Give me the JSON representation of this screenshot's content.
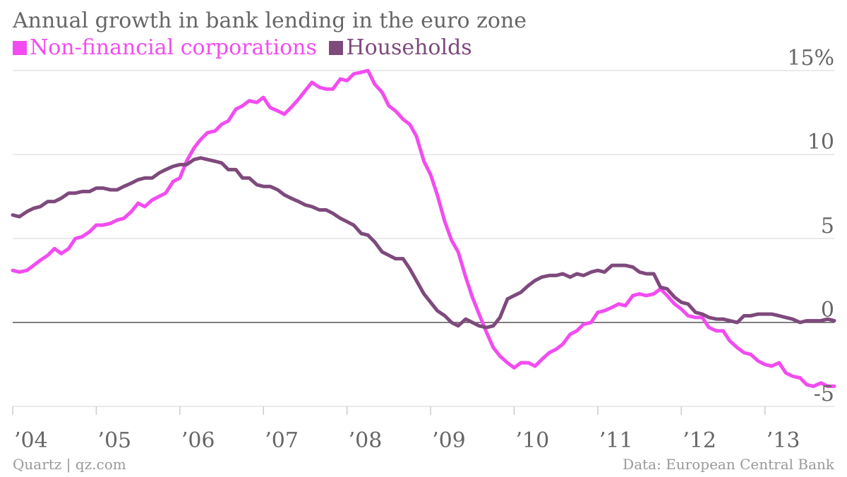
{
  "chart_data": {
    "type": "line",
    "title": "Annual growth in bank lending in the euro zone",
    "y_unit_label": "15%",
    "ylim": [
      -5,
      15
    ],
    "y_ticks": [
      {
        "value": 15,
        "label": "15%"
      },
      {
        "value": 10,
        "label": "10"
      },
      {
        "value": 5,
        "label": "5"
      },
      {
        "value": 0,
        "label": "0"
      },
      {
        "value": -5,
        "label": "-5"
      }
    ],
    "x_ticks": [
      {
        "value": 2004,
        "label": "’04"
      },
      {
        "value": 2005,
        "label": "’05"
      },
      {
        "value": 2006,
        "label": "’06"
      },
      {
        "value": 2007,
        "label": "’07"
      },
      {
        "value": 2008,
        "label": "’08"
      },
      {
        "value": 2009,
        "label": "’09"
      },
      {
        "value": 2010,
        "label": "’10"
      },
      {
        "value": 2011,
        "label": "’11"
      },
      {
        "value": 2012,
        "label": "’12"
      },
      {
        "value": 2013,
        "label": "’13"
      }
    ],
    "xlim": [
      2004.0,
      2013.83
    ],
    "legend_position": "top-left",
    "grid": true,
    "series": [
      {
        "name": "Non-financial corporations",
        "color": "#f24cf0",
        "x": [
          2004.0,
          2004.08,
          2004.17,
          2004.25,
          2004.33,
          2004.42,
          2004.5,
          2004.58,
          2004.67,
          2004.75,
          2004.83,
          2004.92,
          2005.0,
          2005.08,
          2005.17,
          2005.25,
          2005.33,
          2005.42,
          2005.5,
          2005.58,
          2005.67,
          2005.75,
          2005.83,
          2005.92,
          2006.0,
          2006.08,
          2006.17,
          2006.25,
          2006.33,
          2006.42,
          2006.5,
          2006.58,
          2006.67,
          2006.75,
          2006.83,
          2006.92,
          2007.0,
          2007.08,
          2007.17,
          2007.25,
          2007.33,
          2007.42,
          2007.5,
          2007.58,
          2007.67,
          2007.75,
          2007.83,
          2007.92,
          2008.0,
          2008.08,
          2008.17,
          2008.25,
          2008.33,
          2008.42,
          2008.5,
          2008.58,
          2008.67,
          2008.75,
          2008.83,
          2008.92,
          2009.0,
          2009.08,
          2009.17,
          2009.25,
          2009.33,
          2009.42,
          2009.5,
          2009.58,
          2009.67,
          2009.75,
          2009.83,
          2009.92,
          2010.0,
          2010.08,
          2010.17,
          2010.25,
          2010.33,
          2010.42,
          2010.5,
          2010.58,
          2010.67,
          2010.75,
          2010.83,
          2010.92,
          2011.0,
          2011.08,
          2011.17,
          2011.25,
          2011.33,
          2011.42,
          2011.5,
          2011.58,
          2011.67,
          2011.75,
          2011.83,
          2011.92,
          2012.0,
          2012.08,
          2012.17,
          2012.25,
          2012.33,
          2012.42,
          2012.5,
          2012.58,
          2012.67,
          2012.75,
          2012.83,
          2012.92,
          2013.0,
          2013.08,
          2013.17,
          2013.25,
          2013.33,
          2013.42,
          2013.5,
          2013.58,
          2013.67,
          2013.75,
          2013.83
        ],
        "y": [
          3.1,
          3.0,
          3.1,
          3.4,
          3.7,
          4.0,
          4.4,
          4.1,
          4.4,
          5.0,
          5.1,
          5.4,
          5.8,
          5.8,
          5.9,
          6.1,
          6.2,
          6.6,
          7.1,
          6.9,
          7.3,
          7.5,
          7.7,
          8.4,
          8.6,
          9.6,
          10.4,
          10.9,
          11.3,
          11.4,
          11.8,
          12.0,
          12.7,
          12.9,
          13.2,
          13.1,
          13.4,
          12.8,
          12.6,
          12.4,
          12.8,
          13.3,
          13.8,
          14.3,
          14.0,
          13.9,
          13.9,
          14.5,
          14.4,
          14.8,
          14.9,
          15.0,
          14.2,
          13.7,
          12.9,
          12.6,
          12.1,
          11.8,
          11.1,
          9.6,
          8.8,
          7.6,
          6.0,
          4.9,
          4.2,
          2.7,
          1.5,
          0.5,
          -0.6,
          -1.5,
          -2.0,
          -2.4,
          -2.7,
          -2.4,
          -2.4,
          -2.6,
          -2.2,
          -1.8,
          -1.6,
          -1.3,
          -0.7,
          -0.5,
          -0.1,
          0.0,
          0.6,
          0.7,
          0.9,
          1.1,
          1.0,
          1.6,
          1.7,
          1.6,
          1.7,
          2.0,
          1.6,
          1.1,
          0.8,
          0.4,
          0.3,
          0.3,
          -0.3,
          -0.5,
          -0.5,
          -1.1,
          -1.5,
          -1.8,
          -1.9,
          -2.3,
          -2.5,
          -2.6,
          -2.4,
          -3.0,
          -3.2,
          -3.3,
          -3.7,
          -3.8,
          -3.6,
          -3.8,
          -3.8
        ]
      },
      {
        "name": "Households",
        "color": "#7e4a7c",
        "x": [
          2004.0,
          2004.08,
          2004.17,
          2004.25,
          2004.33,
          2004.42,
          2004.5,
          2004.58,
          2004.67,
          2004.75,
          2004.83,
          2004.92,
          2005.0,
          2005.08,
          2005.17,
          2005.25,
          2005.33,
          2005.42,
          2005.5,
          2005.58,
          2005.67,
          2005.75,
          2005.83,
          2005.92,
          2006.0,
          2006.08,
          2006.17,
          2006.25,
          2006.33,
          2006.42,
          2006.5,
          2006.58,
          2006.67,
          2006.75,
          2006.83,
          2006.92,
          2007.0,
          2007.08,
          2007.17,
          2007.25,
          2007.33,
          2007.42,
          2007.5,
          2007.58,
          2007.67,
          2007.75,
          2007.83,
          2007.92,
          2008.0,
          2008.08,
          2008.17,
          2008.25,
          2008.33,
          2008.42,
          2008.5,
          2008.58,
          2008.67,
          2008.75,
          2008.83,
          2008.92,
          2009.0,
          2009.08,
          2009.17,
          2009.25,
          2009.33,
          2009.42,
          2009.5,
          2009.58,
          2009.67,
          2009.75,
          2009.83,
          2009.92,
          2010.0,
          2010.08,
          2010.17,
          2010.25,
          2010.33,
          2010.42,
          2010.5,
          2010.58,
          2010.67,
          2010.75,
          2010.83,
          2010.92,
          2011.0,
          2011.08,
          2011.17,
          2011.25,
          2011.33,
          2011.42,
          2011.5,
          2011.58,
          2011.67,
          2011.75,
          2011.83,
          2011.92,
          2012.0,
          2012.08,
          2012.17,
          2012.25,
          2012.33,
          2012.42,
          2012.5,
          2012.58,
          2012.67,
          2012.75,
          2012.83,
          2012.92,
          2013.0,
          2013.08,
          2013.17,
          2013.25,
          2013.33,
          2013.42,
          2013.5,
          2013.58,
          2013.67,
          2013.75,
          2013.83
        ],
        "y": [
          6.4,
          6.3,
          6.6,
          6.8,
          6.9,
          7.2,
          7.2,
          7.4,
          7.7,
          7.7,
          7.8,
          7.8,
          8.0,
          8.0,
          7.9,
          7.9,
          8.1,
          8.3,
          8.5,
          8.6,
          8.6,
          8.9,
          9.1,
          9.3,
          9.4,
          9.4,
          9.7,
          9.8,
          9.7,
          9.6,
          9.5,
          9.1,
          9.1,
          8.6,
          8.6,
          8.2,
          8.1,
          8.1,
          7.9,
          7.6,
          7.4,
          7.2,
          7.0,
          6.9,
          6.7,
          6.7,
          6.5,
          6.2,
          6.0,
          5.8,
          5.3,
          5.2,
          4.8,
          4.2,
          4.0,
          3.8,
          3.8,
          3.2,
          2.5,
          1.7,
          1.2,
          0.7,
          0.4,
          0.0,
          -0.2,
          0.2,
          0.0,
          -0.2,
          -0.3,
          -0.2,
          0.3,
          1.4,
          1.6,
          1.8,
          2.2,
          2.5,
          2.7,
          2.8,
          2.8,
          2.9,
          2.7,
          2.9,
          2.8,
          3.0,
          3.1,
          3.0,
          3.4,
          3.4,
          3.4,
          3.3,
          3.0,
          2.9,
          2.9,
          2.1,
          2.0,
          1.5,
          1.2,
          1.1,
          0.6,
          0.5,
          0.3,
          0.2,
          0.2,
          0.1,
          0.0,
          0.4,
          0.4,
          0.5,
          0.5,
          0.5,
          0.4,
          0.3,
          0.2,
          0.0,
          0.1,
          0.1,
          0.1,
          0.2,
          0.1
        ]
      }
    ]
  },
  "footer": {
    "source_left": "Quartz | qz.com",
    "source_right": "Data: European Central Bank"
  }
}
